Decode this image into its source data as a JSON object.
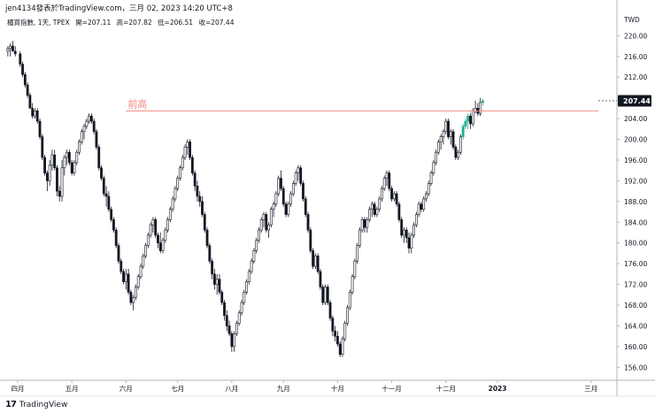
{
  "header": {
    "publisher_line": "jen4134發表於TradingView.com，三月 02, 2023 14:20 UTC+8"
  },
  "legend": {
    "symbol": "櫃買指數, 1天, TPEX",
    "open_label": "開=207.11",
    "high_label": "高=207.82",
    "low_label": "低=206.51",
    "close_label": "收=207.44"
  },
  "footer": {
    "logo_text": "17",
    "brand": "TradingView"
  },
  "chart_data": {
    "type": "candlestick",
    "currency_label": "TWD",
    "y_ticks": [
      156,
      160,
      164,
      168,
      172,
      176,
      180,
      184,
      188,
      192,
      196,
      200,
      204,
      208,
      212,
      216,
      220
    ],
    "ylim": [
      153.5,
      224.5
    ],
    "x_ticks": [
      "四月",
      "五月",
      "六月",
      "七月",
      "八月",
      "九月",
      "十月",
      "十一月",
      "十二月",
      "2023",
      "三月"
    ],
    "x_tick_days": [
      0,
      22,
      44,
      65,
      87,
      108,
      130,
      152,
      174,
      195,
      233
    ],
    "last_price": 207.44,
    "last_price_label": "207.44",
    "resistance": {
      "label": "前高",
      "value": 205.5,
      "start_day": 44
    },
    "colors": {
      "up": "#ffffff",
      "down": "#131722",
      "last_highlight": "#22ab94",
      "resistance_line": "#f28b82",
      "last_price_bg": "#131722"
    },
    "candles": [
      [
        -4,
        217,
        218,
        216,
        217.5
      ],
      [
        -3,
        217.5,
        218.5,
        216,
        218
      ],
      [
        -2,
        218,
        219,
        217,
        217
      ],
      [
        -1,
        217,
        218,
        216,
        216.5
      ],
      [
        1,
        216.5,
        217,
        214,
        214.5
      ],
      [
        2,
        214.5,
        215,
        212,
        212.5
      ],
      [
        3,
        212.5,
        213,
        210,
        210.5
      ],
      [
        4,
        210.5,
        211,
        208,
        208.5
      ],
      [
        5,
        208.5,
        209,
        206,
        206
      ],
      [
        6,
        206,
        207,
        204,
        204.5
      ],
      [
        7,
        204.5,
        206,
        204,
        205.5
      ],
      [
        8,
        205.5,
        206,
        203,
        203.5
      ],
      [
        9,
        203.5,
        204,
        200,
        200.5
      ],
      [
        10,
        200.5,
        201,
        196,
        196.5
      ],
      [
        11,
        196.5,
        197,
        193,
        193.5
      ],
      [
        12,
        193.5,
        194,
        190,
        192
      ],
      [
        13,
        192,
        196,
        191,
        195
      ],
      [
        14,
        195,
        198,
        194,
        197
      ],
      [
        15,
        197,
        198,
        194,
        194.5
      ],
      [
        16,
        194.5,
        195,
        189,
        190
      ],
      [
        17,
        190,
        191,
        188,
        189
      ],
      [
        18,
        189,
        196,
        188,
        194.5
      ],
      [
        19,
        194.5,
        197,
        193,
        196.5
      ],
      [
        20,
        196.5,
        198,
        195,
        197.5
      ],
      [
        21,
        197.5,
        198,
        195,
        195.5
      ],
      [
        22,
        195.5,
        196,
        193,
        193.5
      ],
      [
        23,
        193.5,
        196,
        193,
        195.5
      ],
      [
        24,
        195.5,
        198,
        195,
        197.5
      ],
      [
        25,
        197.5,
        200,
        197,
        199.5
      ],
      [
        26,
        199.5,
        202,
        199,
        201.5
      ],
      [
        27,
        201.5,
        203,
        200,
        202.5
      ],
      [
        28,
        202.5,
        204,
        202,
        203.5
      ],
      [
        29,
        203.5,
        205,
        203,
        204.5
      ],
      [
        30,
        204.5,
        205,
        203,
        203.5
      ],
      [
        31,
        203.5,
        204,
        201,
        201.5
      ],
      [
        32,
        201.5,
        202,
        198,
        198.5
      ],
      [
        33,
        198.5,
        199,
        194,
        194.5
      ],
      [
        34,
        194.5,
        195,
        192,
        192.5
      ],
      [
        35,
        192.5,
        193,
        189,
        189.5
      ],
      [
        36,
        189.5,
        191,
        187,
        189
      ],
      [
        37,
        189,
        190,
        186,
        186.5
      ],
      [
        38,
        186.5,
        187,
        184,
        184.5
      ],
      [
        39,
        184.5,
        185,
        182,
        182.5
      ],
      [
        40,
        182.5,
        183,
        179,
        179.5
      ],
      [
        41,
        179.5,
        180,
        176,
        176.5
      ],
      [
        42,
        176.5,
        177,
        174,
        174.5
      ],
      [
        43,
        174.5,
        175,
        172,
        172.5
      ],
      [
        44,
        172.5,
        175,
        171,
        174
      ],
      [
        45,
        174,
        175,
        170,
        170.5
      ],
      [
        46,
        170.5,
        171,
        168,
        168.5
      ],
      [
        47,
        168.5,
        170,
        167,
        169.5
      ],
      [
        48,
        169.5,
        172,
        169,
        171.5
      ],
      [
        49,
        171.5,
        174,
        171,
        173.5
      ],
      [
        50,
        173.5,
        176,
        173,
        175.5
      ],
      [
        51,
        175.5,
        178,
        175,
        177.5
      ],
      [
        52,
        177.5,
        180,
        177,
        179.5
      ],
      [
        53,
        179.5,
        182,
        179,
        181.5
      ],
      [
        54,
        181.5,
        184,
        181,
        183.5
      ],
      [
        55,
        183.5,
        185,
        182,
        184.5
      ],
      [
        56,
        184.5,
        185,
        181,
        181.5
      ],
      [
        57,
        181.5,
        182,
        179,
        180
      ],
      [
        58,
        180,
        182,
        178,
        178.5
      ],
      [
        59,
        178.5,
        181,
        178,
        180.5
      ],
      [
        60,
        180.5,
        183,
        180,
        182.5
      ],
      [
        61,
        182.5,
        185,
        182,
        184.5
      ],
      [
        62,
        184.5,
        187,
        184,
        186.5
      ],
      [
        63,
        186.5,
        189,
        186,
        188.5
      ],
      [
        64,
        188.5,
        191,
        188,
        190.5
      ],
      [
        65,
        190.5,
        193,
        190,
        192.5
      ],
      [
        66,
        192.5,
        195,
        192,
        194.5
      ],
      [
        67,
        194.5,
        197,
        194,
        196.5
      ],
      [
        68,
        196.5,
        199,
        196,
        198.5
      ],
      [
        69,
        198.5,
        200,
        197,
        199.5
      ],
      [
        70,
        199.5,
        200,
        196,
        196.5
      ],
      [
        71,
        196.5,
        197,
        193,
        193.5
      ],
      [
        72,
        193.5,
        194,
        190,
        191
      ],
      [
        73,
        191,
        192,
        188,
        189
      ],
      [
        74,
        189,
        190,
        187,
        188
      ],
      [
        75,
        188,
        189,
        185,
        185.5
      ],
      [
        76,
        185.5,
        186,
        182,
        182.5
      ],
      [
        77,
        182.5,
        183,
        179,
        179.5
      ],
      [
        78,
        179.5,
        180,
        176,
        176.5
      ],
      [
        79,
        176.5,
        177,
        173,
        174
      ],
      [
        80,
        174,
        175,
        171,
        172
      ],
      [
        81,
        172,
        174,
        170,
        173
      ],
      [
        82,
        173,
        174,
        170,
        170.5
      ],
      [
        83,
        170.5,
        171,
        168,
        168.5
      ],
      [
        84,
        168.5,
        169,
        165,
        166
      ],
      [
        85,
        166,
        167,
        163,
        164
      ],
      [
        86,
        164,
        165,
        162,
        162.5
      ],
      [
        87,
        162.5,
        163,
        159,
        160
      ],
      [
        88,
        160,
        163,
        159,
        162.5
      ],
      [
        89,
        162.5,
        165,
        162,
        164.5
      ],
      [
        90,
        164.5,
        167,
        164,
        166.5
      ],
      [
        91,
        166.5,
        169,
        166,
        168.5
      ],
      [
        92,
        168.5,
        171,
        168,
        170.5
      ],
      [
        93,
        170.5,
        173,
        170,
        172.5
      ],
      [
        94,
        172.5,
        175,
        172,
        174.5
      ],
      [
        95,
        174.5,
        177,
        174,
        176.5
      ],
      [
        96,
        176.5,
        179,
        176,
        178.5
      ],
      [
        97,
        178.5,
        181,
        178,
        180.5
      ],
      [
        98,
        180.5,
        183,
        180,
        182.5
      ],
      [
        99,
        182.5,
        185,
        182,
        184.5
      ],
      [
        100,
        184.5,
        186,
        183,
        185.5
      ],
      [
        101,
        185.5,
        186,
        182,
        182.5
      ],
      [
        102,
        182.5,
        184,
        181,
        183.5
      ],
      [
        103,
        183.5,
        187,
        183,
        186.5
      ],
      [
        104,
        186.5,
        188,
        185,
        187.5
      ],
      [
        105,
        187.5,
        190,
        187,
        189.5
      ],
      [
        106,
        189.5,
        193,
        189,
        192.5
      ],
      [
        107,
        192.5,
        194,
        190,
        190.5
      ],
      [
        108,
        190.5,
        191,
        187,
        187.5
      ],
      [
        109,
        187.5,
        188,
        185,
        185.5
      ],
      [
        110,
        185.5,
        188,
        185,
        187.5
      ],
      [
        111,
        187.5,
        190,
        187,
        189.5
      ],
      [
        112,
        189.5,
        192,
        189,
        191.5
      ],
      [
        113,
        191.5,
        194,
        191,
        193.5
      ],
      [
        114,
        193.5,
        195,
        192,
        194.5
      ],
      [
        115,
        194.5,
        195,
        191,
        191.5
      ],
      [
        116,
        191.5,
        192,
        188,
        188.5
      ],
      [
        117,
        188.5,
        189,
        185,
        185.5
      ],
      [
        118,
        185.5,
        186,
        182,
        182.5
      ],
      [
        119,
        182.5,
        183,
        178,
        178.5
      ],
      [
        120,
        178.5,
        179,
        175,
        175.5
      ],
      [
        121,
        175.5,
        178,
        175,
        177.5
      ],
      [
        122,
        177.5,
        178,
        174,
        174.5
      ],
      [
        123,
        174.5,
        175,
        171,
        171.5
      ],
      [
        124,
        171.5,
        172,
        168,
        168.5
      ],
      [
        125,
        168.5,
        172,
        168,
        171.5
      ],
      [
        126,
        171.5,
        172,
        168,
        168.5
      ],
      [
        127,
        168.5,
        169,
        165,
        165.5
      ],
      [
        128,
        165.5,
        166,
        162,
        163
      ],
      [
        129,
        163,
        164,
        161,
        162
      ],
      [
        130,
        162,
        163,
        160,
        160.5
      ],
      [
        131,
        160.5,
        161,
        158,
        158.5
      ],
      [
        132,
        158.5,
        162,
        158,
        161.5
      ],
      [
        133,
        161.5,
        165,
        161,
        164.5
      ],
      [
        134,
        164.5,
        168,
        164,
        167.5
      ],
      [
        135,
        167.5,
        171,
        167,
        170.5
      ],
      [
        136,
        170.5,
        174,
        170,
        173.5
      ],
      [
        137,
        173.5,
        177,
        173,
        176.5
      ],
      [
        138,
        176.5,
        180,
        176,
        179.5
      ],
      [
        139,
        179.5,
        183,
        179,
        182.5
      ],
      [
        140,
        182.5,
        185,
        182,
        184.5
      ],
      [
        141,
        184.5,
        185,
        182,
        183
      ],
      [
        142,
        183,
        185,
        182,
        184.5
      ],
      [
        143,
        184.5,
        187,
        184,
        186.5
      ],
      [
        144,
        186.5,
        188,
        185,
        187.5
      ],
      [
        145,
        187.5,
        188,
        185,
        185.5
      ],
      [
        146,
        185.5,
        187,
        185,
        186.5
      ],
      [
        147,
        186.5,
        189,
        186,
        188.5
      ],
      [
        148,
        188.5,
        191,
        188,
        190.5
      ],
      [
        149,
        190.5,
        193,
        190,
        192.5
      ],
      [
        150,
        192.5,
        194,
        191,
        193.5
      ],
      [
        151,
        193.5,
        194,
        190,
        190.5
      ],
      [
        152,
        190.5,
        191,
        188,
        188.5
      ],
      [
        153,
        188.5,
        190,
        188,
        189.5
      ],
      [
        154,
        189.5,
        190,
        187,
        187.5
      ],
      [
        155,
        187.5,
        188,
        184,
        184.5
      ],
      [
        156,
        184.5,
        185,
        181,
        181.5
      ],
      [
        157,
        181.5,
        183,
        180,
        182.5
      ],
      [
        158,
        182.5,
        183,
        180,
        181
      ],
      [
        159,
        181,
        182,
        178,
        179
      ],
      [
        160,
        179,
        182,
        178,
        181.5
      ],
      [
        161,
        181.5,
        184,
        181,
        183.5
      ],
      [
        162,
        183.5,
        186,
        183,
        185.5
      ],
      [
        163,
        185.5,
        188,
        185,
        187.5
      ],
      [
        164,
        187.5,
        188,
        186,
        186.5
      ],
      [
        165,
        186.5,
        189,
        186,
        188.5
      ],
      [
        166,
        188.5,
        190,
        188,
        189.5
      ],
      [
        167,
        189.5,
        192,
        189,
        191.5
      ],
      [
        168,
        191.5,
        194,
        191,
        193.5
      ],
      [
        169,
        193.5,
        196,
        193,
        195.5
      ],
      [
        170,
        195.5,
        198,
        195,
        197.5
      ],
      [
        171,
        197.5,
        200,
        197,
        199.5
      ],
      [
        172,
        199.5,
        201,
        198,
        200.5
      ],
      [
        173,
        200.5,
        202,
        199,
        201.5
      ],
      [
        174,
        201.5,
        204,
        201,
        203.5
      ],
      [
        175,
        203.5,
        204,
        200,
        200.5
      ],
      [
        176,
        200.5,
        202,
        199,
        201.5
      ],
      [
        177,
        201.5,
        202,
        198,
        198.5
      ],
      [
        178,
        198.5,
        199,
        196,
        196.5
      ],
      [
        179,
        196.5,
        198,
        196,
        197.5
      ],
      [
        180,
        197.5,
        201,
        197,
        200.5
      ],
      [
        181,
        200.5,
        203,
        200,
        202.5
      ],
      [
        182,
        202.5,
        204,
        202,
        203.5
      ],
      [
        183,
        203.5,
        205,
        202,
        204.5
      ],
      [
        184,
        204.5,
        205,
        202,
        203
      ],
      [
        185,
        203,
        206,
        202.5,
        205.5
      ],
      [
        186,
        205.5,
        207.5,
        205,
        206
      ],
      [
        187,
        206,
        207,
        204.5,
        205
      ],
      [
        188,
        205,
        208,
        204.5,
        207.11
      ],
      [
        189,
        207.11,
        207.82,
        206.51,
        207.44
      ]
    ]
  }
}
